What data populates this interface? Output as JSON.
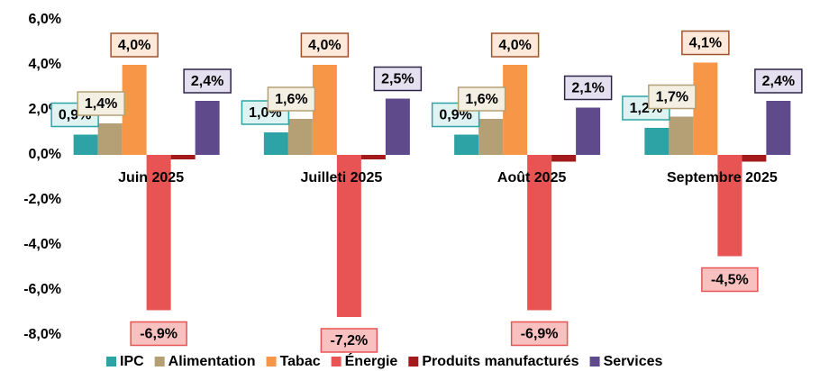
{
  "chart_data": {
    "type": "bar",
    "categories": [
      "Juin 2025",
      "Juilleti 2025",
      "Août  2025",
      "Septembre 2025"
    ],
    "series": [
      {
        "name": "IPC",
        "color": "#2ea3a5",
        "values": [
          0.9,
          1.0,
          0.9,
          1.2
        ],
        "value_labels": [
          "0,9%",
          "1,0%",
          "0,9%",
          "1,2%"
        ]
      },
      {
        "name": "Alimentation",
        "color": "#b5a075",
        "values": [
          1.4,
          1.6,
          1.6,
          1.7
        ],
        "value_labels": [
          "1,4%",
          "1,6%",
          "1,6%",
          "1,7%"
        ]
      },
      {
        "name": "Tabac",
        "color": "#f79646",
        "values": [
          4.0,
          4.0,
          4.0,
          4.1
        ],
        "value_labels": [
          "4,0%",
          "4,0%",
          "4,0%",
          "4,1%"
        ]
      },
      {
        "name": "Énergie",
        "color": "#e85454",
        "values": [
          -6.9,
          -7.2,
          -6.9,
          -4.5
        ],
        "value_labels": [
          "-6,9%",
          "-7,2%",
          "-6,9%",
          "-4,5%"
        ]
      },
      {
        "name": "Produits manufacturés",
        "color": "#a3191c",
        "values": [
          -0.2,
          -0.2,
          -0.3,
          -0.3
        ]
      },
      {
        "name": "Services",
        "color": "#5f4a8b",
        "values": [
          2.4,
          2.5,
          2.1,
          2.4
        ],
        "value_labels": [
          "2,4%",
          "2,5%",
          "2,1%",
          "2,4%"
        ]
      }
    ],
    "ylim": [
      -8,
      6
    ],
    "yticks": [
      {
        "value": 6,
        "label": "6,0%"
      },
      {
        "value": 4,
        "label": "4,0%"
      },
      {
        "value": 2,
        "label": "2,0%"
      },
      {
        "value": 0,
        "label": "0,0%"
      },
      {
        "value": -2,
        "label": "-2,0%"
      },
      {
        "value": -4,
        "label": "-4,0%"
      },
      {
        "value": -6,
        "label": "-6,0%"
      },
      {
        "value": -8,
        "label": "-8,0%"
      }
    ],
    "legend": "bottom"
  }
}
